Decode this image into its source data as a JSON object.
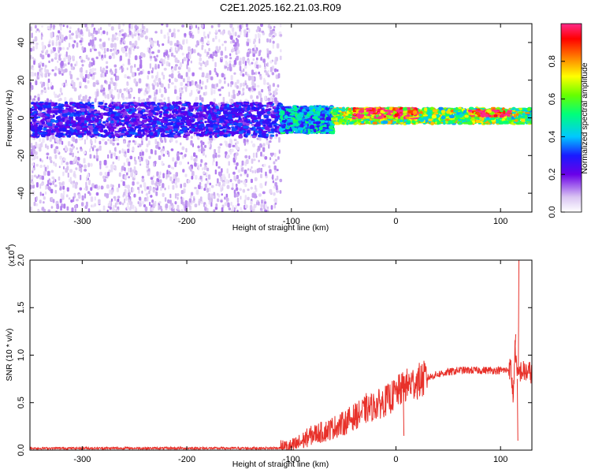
{
  "chart_data": [
    {
      "type": "heatmap",
      "title": "C2E1.2025.162.21.03.R09",
      "xlabel": "Height of straight line (km)",
      "ylabel": "Frequency (Hz)",
      "xlim": [
        -350,
        130
      ],
      "ylim": [
        -50,
        50
      ],
      "xticks": [
        -300,
        -200,
        -100,
        0,
        100
      ],
      "yticks": [
        -40,
        -20,
        0,
        20,
        40
      ],
      "grid": false,
      "colorbar": {
        "label": "Normalized spectral amplitude",
        "range": [
          0.0,
          1.0
        ],
        "ticks": [
          "0.0",
          "0.2",
          "0.4",
          "0.6",
          "0.8"
        ]
      },
      "description_of_values": [
        {
          "x_range": [
            -350,
            -110
          ],
          "frequency_band": [
            -50,
            50
          ],
          "amplitude": 0.05,
          "note": "sparse faint noise"
        },
        {
          "x_range": [
            -350,
            -110
          ],
          "frequency_band": [
            -10,
            8
          ],
          "amplitude": 0.25,
          "note": "dense core"
        },
        {
          "x_range": [
            -110,
            -60
          ],
          "frequency_band": [
            -8,
            6
          ],
          "amplitude": 0.4
        },
        {
          "x_range": [
            -60,
            130
          ],
          "frequency_band": [
            -3,
            5
          ],
          "amplitude": 0.6,
          "note": "narrow band near 2 Hz"
        },
        {
          "x_range": [
            -40,
            20
          ],
          "frequency_band": [
            0,
            5
          ],
          "amplitude": 0.9,
          "note": "intermittent red spots"
        },
        {
          "x_range": [
            70,
            110
          ],
          "frequency_band": [
            1,
            4
          ],
          "amplitude": 0.95,
          "note": "strong red segment"
        }
      ]
    },
    {
      "type": "line",
      "xlabel": "Height of straight line (km)",
      "ylabel": "SNR (10 * v/v)",
      "y_multiplier": "(x10",
      "y_multiplier_exp": "4",
      "y_multiplier_close": ")",
      "xlim": [
        -350,
        130
      ],
      "ylim": [
        0,
        2.0
      ],
      "xticks": [
        -300,
        -200,
        -100,
        0,
        100
      ],
      "yticks": [
        "0.0",
        "0.5",
        "1.0",
        "1.5",
        "2.0"
      ],
      "grid": false,
      "series": [
        {
          "color": "#e8312a",
          "x": [
            -350,
            -300,
            -250,
            -200,
            -150,
            -120,
            -100,
            -95,
            -90,
            -85,
            -80,
            -75,
            -70,
            -65,
            -60,
            -55,
            -50,
            -45,
            -40,
            -35,
            -30,
            -25,
            -20,
            -15,
            -10,
            -5,
            0,
            5,
            10,
            15,
            20,
            25,
            30,
            35,
            40,
            50,
            60,
            70,
            80,
            90,
            100,
            105,
            110,
            112,
            114,
            116,
            118,
            120,
            125,
            130
          ],
          "y": [
            0.02,
            0.02,
            0.02,
            0.02,
            0.02,
            0.02,
            0.03,
            0.06,
            0.09,
            0.13,
            0.16,
            0.18,
            0.19,
            0.21,
            0.24,
            0.26,
            0.28,
            0.32,
            0.35,
            0.38,
            0.42,
            0.44,
            0.47,
            0.49,
            0.52,
            0.55,
            0.6,
            0.64,
            0.68,
            0.7,
            0.72,
            0.74,
            0.76,
            0.78,
            0.8,
            0.82,
            0.84,
            0.84,
            0.84,
            0.84,
            0.84,
            0.84,
            0.86,
            0.55,
            1.1,
            0.75,
            0.83,
            0.83,
            0.82,
            0.82
          ],
          "spikes": [
            {
              "x": 9,
              "y": 0.78
            },
            {
              "x": 7,
              "y": 0.15
            },
            {
              "x": -29,
              "y": 0.6
            },
            {
              "x": 114,
              "y": 1.22
            },
            {
              "x": 116,
              "y": 0.1
            },
            {
              "x": 117,
              "y": 2.0
            }
          ]
        }
      ]
    }
  ]
}
